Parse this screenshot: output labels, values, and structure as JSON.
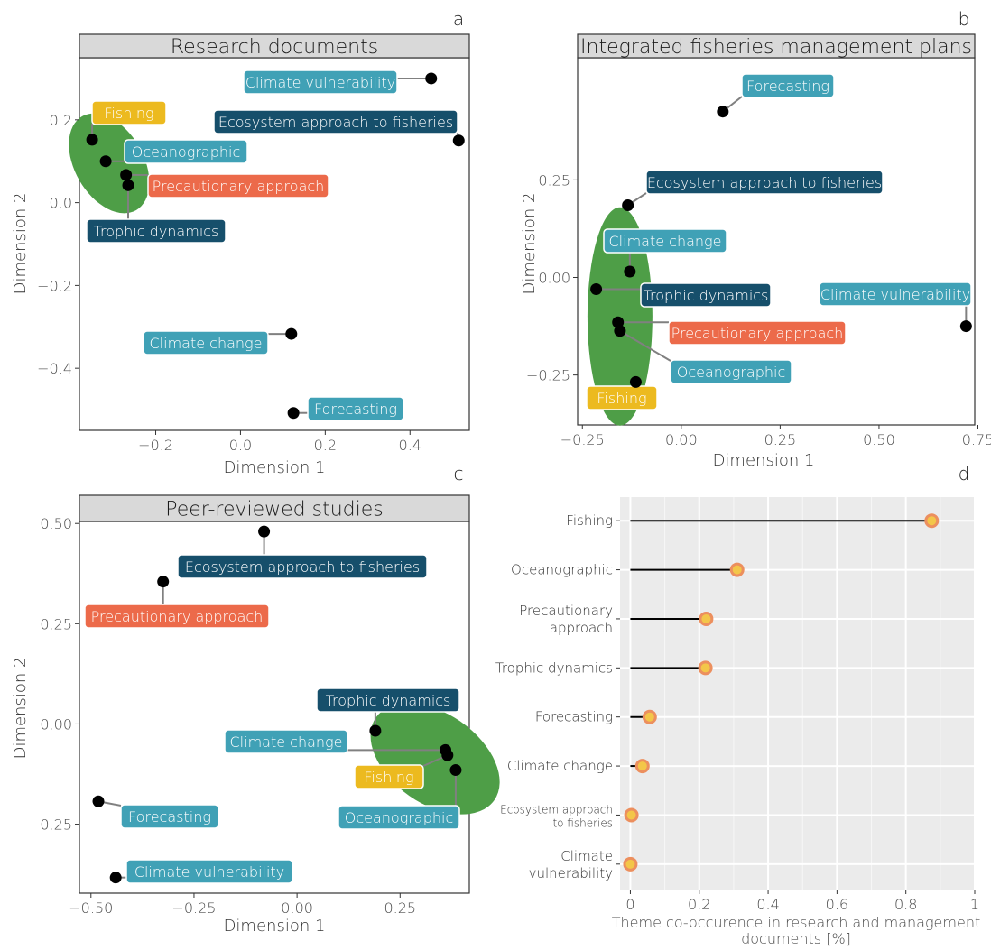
{
  "colors": {
    "teal": "#40a1b6",
    "navy": "#164f6b",
    "orange": "#ec6a4a",
    "gold": "#ecba1f",
    "ellipse": "#4e9e47",
    "strip": "#d9d9d9",
    "lollipop_outer": "#ec8f5e",
    "lollipop_inner": "#f3c649"
  },
  "chart_data": [
    {
      "type": "scatter",
      "panel_letter": "a",
      "title": "Research documents",
      "xlabel": "Dimension 1",
      "ylabel": "Dimension 2",
      "xticks": [
        -0.2,
        0.0,
        0.2,
        0.4
      ],
      "xtick_labels": [
        "−0.2",
        "0.0",
        "0.2",
        "0.4"
      ],
      "yticks": [
        0.2,
        0.0,
        -0.2,
        -0.4
      ],
      "ytick_labels": [
        "0.2",
        "0.0",
        "−0.2",
        "−0.4"
      ],
      "xlim": [
        -0.38,
        0.54
      ],
      "ylim": [
        -0.55,
        0.35
      ],
      "points": [
        {
          "label": "Climate vulnerability",
          "x": 0.45,
          "y": 0.3,
          "color": "teal"
        },
        {
          "label": "Ecosystem approach to fisheries",
          "x": 0.515,
          "y": 0.15,
          "color": "navy"
        },
        {
          "label": "Fishing",
          "x": -0.35,
          "y": 0.152,
          "color": "gold"
        },
        {
          "label": "Oceanographic",
          "x": -0.318,
          "y": 0.1,
          "color": "teal"
        },
        {
          "label": "Precautionary approach",
          "x": -0.27,
          "y": 0.067,
          "color": "orange"
        },
        {
          "label": "Trophic dynamics",
          "x": -0.265,
          "y": 0.042,
          "color": "navy"
        },
        {
          "label": "Climate change",
          "x": 0.12,
          "y": -0.317,
          "color": "teal"
        },
        {
          "label": "Forecasting",
          "x": 0.125,
          "y": -0.508,
          "color": "teal"
        }
      ]
    },
    {
      "type": "scatter",
      "panel_letter": "b",
      "title": "Integrated fisheries management plans",
      "xlabel": "Dimension 1",
      "ylabel": "Dimension 2",
      "xticks": [
        -0.25,
        0.0,
        0.25,
        0.5,
        0.75
      ],
      "xtick_labels": [
        "−0.25",
        "0.00",
        "0.25",
        "0.50",
        "0.75"
      ],
      "yticks": [
        0.25,
        0.0,
        -0.25
      ],
      "ytick_labels": [
        "0.25",
        "0.00",
        "−0.25"
      ],
      "xlim": [
        -0.262,
        0.742
      ],
      "ylim": [
        -0.378,
        0.563
      ],
      "points": [
        {
          "label": "Forecasting",
          "x": 0.105,
          "y": 0.425,
          "color": "teal"
        },
        {
          "label": "Ecosystem approach to fisheries",
          "x": -0.135,
          "y": 0.185,
          "color": "navy"
        },
        {
          "label": "Climate change",
          "x": -0.13,
          "y": 0.015,
          "color": "teal"
        },
        {
          "label": "Trophic dynamics",
          "x": -0.215,
          "y": -0.03,
          "color": "navy"
        },
        {
          "label": "Climate vulnerability",
          "x": 0.72,
          "y": -0.125,
          "color": "teal"
        },
        {
          "label": "Precautionary approach",
          "x": -0.16,
          "y": -0.115,
          "color": "orange"
        },
        {
          "label": "Oceanographic",
          "x": -0.155,
          "y": -0.137,
          "color": "teal"
        },
        {
          "label": "Fishing",
          "x": -0.115,
          "y": -0.268,
          "color": "gold"
        }
      ]
    },
    {
      "type": "scatter",
      "panel_letter": "c",
      "title": "Peer-reviewed studies",
      "xlabel": "Dimension 1",
      "ylabel": "Dimension 2",
      "xticks": [
        -0.5,
        -0.25,
        0.0,
        0.25
      ],
      "xtick_labels": [
        "−0.50",
        "−0.25",
        "0.00",
        "0.25"
      ],
      "yticks": [
        0.5,
        0.25,
        0.0,
        -0.25
      ],
      "ytick_labels": [
        "0.50",
        "0.25",
        "0.00",
        "−0.25"
      ],
      "xlim": [
        -0.528,
        0.418
      ],
      "ylim": [
        -0.422,
        0.505
      ],
      "points": [
        {
          "label": "Ecosystem approach to fisheries",
          "x": -0.08,
          "y": 0.48,
          "color": "navy"
        },
        {
          "label": "Precautionary approach",
          "x": -0.325,
          "y": 0.355,
          "color": "orange"
        },
        {
          "label": "Trophic dynamics",
          "x": 0.19,
          "y": -0.017,
          "color": "navy"
        },
        {
          "label": "Climate change",
          "x": 0.36,
          "y": -0.065,
          "color": "teal"
        },
        {
          "label": "Fishing",
          "x": 0.365,
          "y": -0.078,
          "color": "gold"
        },
        {
          "label": "Oceanographic",
          "x": 0.385,
          "y": -0.115,
          "color": "teal"
        },
        {
          "label": "Forecasting",
          "x": -0.482,
          "y": -0.193,
          "color": "teal"
        },
        {
          "label": "Climate vulnerability",
          "x": -0.44,
          "y": -0.383,
          "color": "teal"
        }
      ]
    },
    {
      "type": "lollipop",
      "panel_letter": "d",
      "xlabel": "Theme co-occurence in research and management documents [%]",
      "xticks": [
        0,
        0.2,
        0.4,
        0.6,
        0.8,
        1
      ],
      "xtick_labels": [
        "0",
        "0.2",
        "0.4",
        "0.6",
        "0.8",
        "1"
      ],
      "xlim": [
        -0.03,
        1
      ],
      "categories": [
        "Fishing",
        "Oceanographic",
        "Precautionary approach",
        "Trophic dynamics",
        "Forecasting",
        "Climate change",
        "Ecosystem approach to fisheries",
        "Climate vulnerability"
      ],
      "category_lines": [
        [
          "Fishing"
        ],
        [
          "Oceanographic"
        ],
        [
          "Precautionary",
          "approach"
        ],
        [
          "Trophic dynamics"
        ],
        [
          "Forecasting"
        ],
        [
          "Climate change"
        ],
        [
          "Ecosystem approach",
          "to fisheries"
        ],
        [
          "Climate",
          "vulnerability"
        ]
      ],
      "values": [
        0.875,
        0.31,
        0.22,
        0.218,
        0.056,
        0.035,
        0.003,
        0.0
      ]
    }
  ]
}
